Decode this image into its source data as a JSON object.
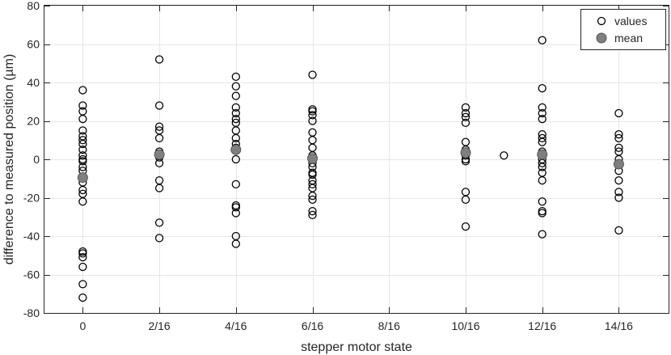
{
  "chart_data": {
    "type": "scatter",
    "xlabel": "stepper motor state",
    "ylabel": "difference to measured position (µm)",
    "ylim": [
      -80,
      80
    ],
    "yticks": [
      -80,
      -60,
      -40,
      -20,
      0,
      20,
      40,
      60,
      80
    ],
    "xticks": [
      {
        "value": 0,
        "label": "0"
      },
      {
        "value": 2,
        "label": "2/16"
      },
      {
        "value": 4,
        "label": "4/16"
      },
      {
        "value": 6,
        "label": "6/16"
      },
      {
        "value": 8,
        "label": "8/16"
      },
      {
        "value": 10,
        "label": "10/16"
      },
      {
        "value": 12,
        "label": "12/16"
      },
      {
        "value": 14,
        "label": "14/16"
      }
    ],
    "xlim": [
      -1,
      15.3
    ],
    "grid": true,
    "legend_position": "top-right",
    "colors": {
      "values_edge": "#000000",
      "mean_fill": "#7f7f7f",
      "mean_edge": "#555555"
    },
    "series": [
      {
        "name": "values",
        "marker": "open-circle",
        "points": [
          {
            "x": 0,
            "y": 36
          },
          {
            "x": 0,
            "y": 28
          },
          {
            "x": 0,
            "y": 25
          },
          {
            "x": 0,
            "y": 21
          },
          {
            "x": 0,
            "y": 15
          },
          {
            "x": 0,
            "y": 12
          },
          {
            "x": 0,
            "y": 10
          },
          {
            "x": 0,
            "y": 8
          },
          {
            "x": 0,
            "y": 5
          },
          {
            "x": 0,
            "y": 2
          },
          {
            "x": 0,
            "y": 0
          },
          {
            "x": 0,
            "y": -1
          },
          {
            "x": 0,
            "y": -4
          },
          {
            "x": 0,
            "y": -6
          },
          {
            "x": 0,
            "y": -9
          },
          {
            "x": 0,
            "y": -12
          },
          {
            "x": 0,
            "y": -16
          },
          {
            "x": 0,
            "y": -18
          },
          {
            "x": 0,
            "y": -22
          },
          {
            "x": 0,
            "y": -48
          },
          {
            "x": 0,
            "y": -49
          },
          {
            "x": 0,
            "y": -51
          },
          {
            "x": 0,
            "y": -56
          },
          {
            "x": 0,
            "y": -65
          },
          {
            "x": 0,
            "y": -72
          },
          {
            "x": 2,
            "y": 52
          },
          {
            "x": 2,
            "y": 28
          },
          {
            "x": 2,
            "y": 17
          },
          {
            "x": 2,
            "y": 15
          },
          {
            "x": 2,
            "y": 11
          },
          {
            "x": 2,
            "y": 4
          },
          {
            "x": 2,
            "y": 1
          },
          {
            "x": 2,
            "y": -2
          },
          {
            "x": 2,
            "y": -11
          },
          {
            "x": 2,
            "y": -15
          },
          {
            "x": 2,
            "y": -33
          },
          {
            "x": 2,
            "y": -41
          },
          {
            "x": 4,
            "y": 43
          },
          {
            "x": 4,
            "y": 38
          },
          {
            "x": 4,
            "y": 33
          },
          {
            "x": 4,
            "y": 27
          },
          {
            "x": 4,
            "y": 24
          },
          {
            "x": 4,
            "y": 21
          },
          {
            "x": 4,
            "y": 19
          },
          {
            "x": 4,
            "y": 15
          },
          {
            "x": 4,
            "y": 11
          },
          {
            "x": 4,
            "y": 8
          },
          {
            "x": 4,
            "y": 6
          },
          {
            "x": 4,
            "y": 0
          },
          {
            "x": 4,
            "y": -13
          },
          {
            "x": 4,
            "y": -24
          },
          {
            "x": 4,
            "y": -25
          },
          {
            "x": 4,
            "y": -28
          },
          {
            "x": 4,
            "y": -40
          },
          {
            "x": 4,
            "y": -44
          },
          {
            "x": 6,
            "y": 44
          },
          {
            "x": 6,
            "y": 26
          },
          {
            "x": 6,
            "y": 25
          },
          {
            "x": 6,
            "y": 23
          },
          {
            "x": 6,
            "y": 20
          },
          {
            "x": 6,
            "y": 14
          },
          {
            "x": 6,
            "y": 10
          },
          {
            "x": 6,
            "y": 6
          },
          {
            "x": 6,
            "y": 2
          },
          {
            "x": 6,
            "y": 0
          },
          {
            "x": 6,
            "y": -2
          },
          {
            "x": 6,
            "y": -4
          },
          {
            "x": 6,
            "y": -7
          },
          {
            "x": 6,
            "y": -8
          },
          {
            "x": 6,
            "y": -11
          },
          {
            "x": 6,
            "y": -13
          },
          {
            "x": 6,
            "y": -15
          },
          {
            "x": 6,
            "y": -19
          },
          {
            "x": 6,
            "y": -21
          },
          {
            "x": 6,
            "y": -27
          },
          {
            "x": 6,
            "y": -29
          },
          {
            "x": 10,
            "y": 27
          },
          {
            "x": 10,
            "y": 24
          },
          {
            "x": 10,
            "y": 22
          },
          {
            "x": 10,
            "y": 19
          },
          {
            "x": 10,
            "y": 9
          },
          {
            "x": 10,
            "y": 5
          },
          {
            "x": 10,
            "y": 2
          },
          {
            "x": 10,
            "y": 0
          },
          {
            "x": 10,
            "y": -1
          },
          {
            "x": 10,
            "y": -17
          },
          {
            "x": 10,
            "y": -21
          },
          {
            "x": 10,
            "y": -35
          },
          {
            "x": 11,
            "y": 2
          },
          {
            "x": 12,
            "y": 62
          },
          {
            "x": 12,
            "y": 37
          },
          {
            "x": 12,
            "y": 27
          },
          {
            "x": 12,
            "y": 24
          },
          {
            "x": 12,
            "y": 21
          },
          {
            "x": 12,
            "y": 13
          },
          {
            "x": 12,
            "y": 11
          },
          {
            "x": 12,
            "y": 9
          },
          {
            "x": 12,
            "y": 4
          },
          {
            "x": 12,
            "y": 0
          },
          {
            "x": 12,
            "y": -2
          },
          {
            "x": 12,
            "y": -4
          },
          {
            "x": 12,
            "y": -7
          },
          {
            "x": 12,
            "y": -11
          },
          {
            "x": 12,
            "y": -22
          },
          {
            "x": 12,
            "y": -27
          },
          {
            "x": 12,
            "y": -28
          },
          {
            "x": 12,
            "y": -39
          },
          {
            "x": 14,
            "y": 24
          },
          {
            "x": 14,
            "y": 13
          },
          {
            "x": 14,
            "y": 11
          },
          {
            "x": 14,
            "y": 6
          },
          {
            "x": 14,
            "y": 4
          },
          {
            "x": 14,
            "y": 0
          },
          {
            "x": 14,
            "y": -2
          },
          {
            "x": 14,
            "y": -6
          },
          {
            "x": 14,
            "y": -11
          },
          {
            "x": 14,
            "y": -17
          },
          {
            "x": 14,
            "y": -20
          },
          {
            "x": 14,
            "y": -37
          }
        ]
      },
      {
        "name": "mean",
        "marker": "filled-circle",
        "points": [
          {
            "x": 0,
            "y": -9.5
          },
          {
            "x": 2,
            "y": 2.5
          },
          {
            "x": 4,
            "y": 5
          },
          {
            "x": 6,
            "y": 0.5
          },
          {
            "x": 10,
            "y": 3.5
          },
          {
            "x": 12,
            "y": 2.5
          },
          {
            "x": 14,
            "y": -2.5
          }
        ]
      }
    ]
  }
}
